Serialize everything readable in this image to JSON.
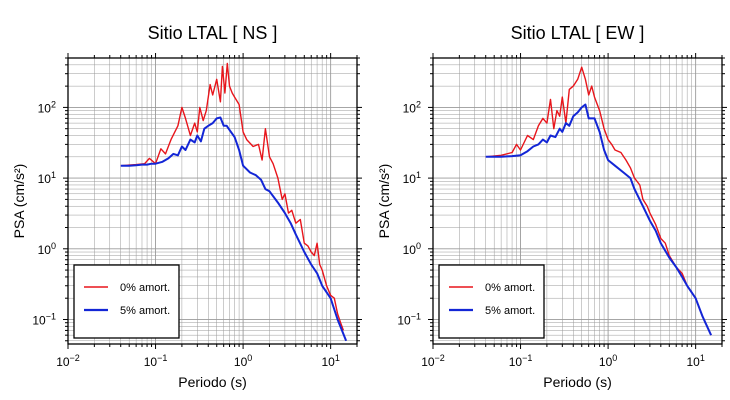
{
  "colors": {
    "undamped": "#e8151b",
    "damped": "#1326d6",
    "grid": "#9a9a9a",
    "frame": "#000000"
  },
  "chart_data": [
    {
      "type": "line",
      "title": "Sitio LTAL [ NS ]",
      "xlabel": "Periodo (s)",
      "ylabel": "PSA (cm/s²)",
      "xscale": "log",
      "yscale": "log",
      "xlim": [
        0.01,
        20
      ],
      "ylim": [
        0.045,
        500
      ],
      "grid": true,
      "legend_position": "bottom-left",
      "x_ticks": [
        {
          "value": 0.01,
          "base": "10",
          "exp": "−2"
        },
        {
          "value": 0.1,
          "base": "10",
          "exp": "−1"
        },
        {
          "value": 1,
          "base": "10",
          "exp": "0"
        },
        {
          "value": 10,
          "base": "10",
          "exp": "1"
        }
      ],
      "y_ticks": [
        {
          "value": 0.1,
          "base": "10",
          "exp": "−1"
        },
        {
          "value": 1,
          "base": "10",
          "exp": "0"
        },
        {
          "value": 10,
          "base": "10",
          "exp": "1"
        },
        {
          "value": 100,
          "base": "10",
          "exp": "2"
        }
      ],
      "series": [
        {
          "name": "0% amort.",
          "color": "#e8151b",
          "x": [
            0.04,
            0.06,
            0.075,
            0.085,
            0.1,
            0.115,
            0.13,
            0.15,
            0.18,
            0.2,
            0.22,
            0.25,
            0.28,
            0.3,
            0.32,
            0.35,
            0.38,
            0.42,
            0.45,
            0.5,
            0.55,
            0.58,
            0.62,
            0.66,
            0.7,
            0.75,
            0.8,
            0.9,
            1.0,
            1.1,
            1.3,
            1.5,
            1.65,
            1.8,
            2.0,
            2.2,
            2.5,
            2.8,
            3.0,
            3.3,
            3.6,
            4.0,
            4.5,
            5.0,
            5.5,
            6.0,
            6.5,
            7.0,
            7.5,
            8.0,
            9.0,
            10.0,
            11.0,
            12.0,
            13.0,
            14.0
          ],
          "y": [
            15,
            15.5,
            16,
            19,
            16,
            26,
            22,
            35,
            55,
            100,
            70,
            40,
            60,
            45,
            100,
            65,
            90,
            210,
            150,
            250,
            120,
            380,
            160,
            420,
            200,
            160,
            140,
            110,
            45,
            35,
            28,
            30,
            18,
            50,
            20,
            16,
            10,
            5,
            6,
            3.2,
            3.5,
            2.3,
            2.6,
            1.2,
            1.1,
            0.9,
            0.8,
            1.2,
            0.6,
            0.5,
            0.3,
            0.22,
            0.2,
            0.12,
            0.09,
            0.07
          ]
        },
        {
          "name": "5% amort.",
          "color": "#1326d6",
          "x": [
            0.04,
            0.05,
            0.06,
            0.07,
            0.08,
            0.09,
            0.1,
            0.12,
            0.14,
            0.16,
            0.18,
            0.2,
            0.22,
            0.25,
            0.28,
            0.3,
            0.33,
            0.36,
            0.4,
            0.45,
            0.5,
            0.55,
            0.6,
            0.65,
            0.7,
            0.8,
            0.9,
            1.0,
            1.2,
            1.4,
            1.6,
            1.8,
            2.0,
            2.5,
            3.0,
            3.5,
            4.0,
            5.0,
            6.0,
            7.0,
            8.0,
            10.0,
            12.0,
            15.0
          ],
          "y": [
            15,
            15,
            15.2,
            15.5,
            15.5,
            16,
            16,
            17,
            19,
            22,
            21,
            28,
            25,
            35,
            32,
            40,
            33,
            50,
            55,
            60,
            70,
            72,
            55,
            55,
            48,
            38,
            25,
            15,
            12,
            11,
            9.5,
            7,
            6.5,
            4.5,
            3.2,
            2.3,
            1.6,
            0.9,
            0.6,
            0.45,
            0.3,
            0.2,
            0.1,
            0.05
          ]
        }
      ]
    },
    {
      "type": "line",
      "title": "Sitio LTAL [ EW ]",
      "xlabel": "Periodo (s)",
      "ylabel": "PSA (cm/s²)",
      "xscale": "log",
      "yscale": "log",
      "xlim": [
        0.01,
        20
      ],
      "ylim": [
        0.045,
        500
      ],
      "grid": true,
      "legend_position": "bottom-left",
      "x_ticks": [
        {
          "value": 0.01,
          "base": "10",
          "exp": "−2"
        },
        {
          "value": 0.1,
          "base": "10",
          "exp": "−1"
        },
        {
          "value": 1,
          "base": "10",
          "exp": "0"
        },
        {
          "value": 10,
          "base": "10",
          "exp": "1"
        }
      ],
      "y_ticks": [
        {
          "value": 0.1,
          "base": "10",
          "exp": "−1"
        },
        {
          "value": 1,
          "base": "10",
          "exp": "0"
        },
        {
          "value": 10,
          "base": "10",
          "exp": "1"
        },
        {
          "value": 100,
          "base": "10",
          "exp": "2"
        }
      ],
      "series": [
        {
          "name": "0% amort.",
          "color": "#e8151b",
          "x": [
            0.04,
            0.06,
            0.08,
            0.09,
            0.1,
            0.12,
            0.14,
            0.16,
            0.18,
            0.2,
            0.22,
            0.24,
            0.26,
            0.28,
            0.3,
            0.33,
            0.36,
            0.4,
            0.45,
            0.5,
            0.55,
            0.6,
            0.65,
            0.7,
            0.8,
            0.9,
            1.0,
            1.1,
            1.2,
            1.4,
            1.6,
            1.8,
            2.0,
            2.3,
            2.5,
            2.8,
            3.0,
            3.5,
            4.0,
            4.5,
            5.0,
            6.0,
            7.0,
            8.0,
            10.0,
            12.0,
            15.0
          ],
          "y": [
            20,
            21,
            23,
            30,
            25,
            40,
            35,
            55,
            70,
            60,
            130,
            50,
            90,
            75,
            140,
            60,
            180,
            200,
            250,
            370,
            250,
            150,
            200,
            140,
            90,
            50,
            35,
            30,
            25,
            23,
            18,
            14,
            10,
            8,
            5,
            4,
            3.2,
            2.2,
            1.4,
            1.2,
            0.8,
            0.55,
            0.45,
            0.3,
            0.2,
            0.11,
            0.06
          ]
        },
        {
          "name": "5% amort.",
          "color": "#1326d6",
          "x": [
            0.04,
            0.06,
            0.08,
            0.1,
            0.12,
            0.14,
            0.16,
            0.18,
            0.2,
            0.22,
            0.25,
            0.28,
            0.3,
            0.33,
            0.36,
            0.4,
            0.45,
            0.5,
            0.55,
            0.6,
            0.65,
            0.7,
            0.8,
            0.9,
            1.0,
            1.2,
            1.5,
            1.8,
            2.0,
            2.5,
            3.0,
            3.5,
            4.0,
            5.0,
            6.0,
            7.0,
            8.0,
            10.0,
            12.0,
            15.0
          ],
          "y": [
            20,
            20,
            20.5,
            21,
            24,
            28,
            30,
            35,
            32,
            40,
            38,
            50,
            45,
            60,
            55,
            75,
            85,
            100,
            110,
            70,
            70,
            70,
            45,
            25,
            18,
            15,
            12,
            10,
            7,
            4,
            2.5,
            1.8,
            1.2,
            0.75,
            0.55,
            0.4,
            0.3,
            0.2,
            0.11,
            0.06
          ]
        }
      ]
    }
  ]
}
